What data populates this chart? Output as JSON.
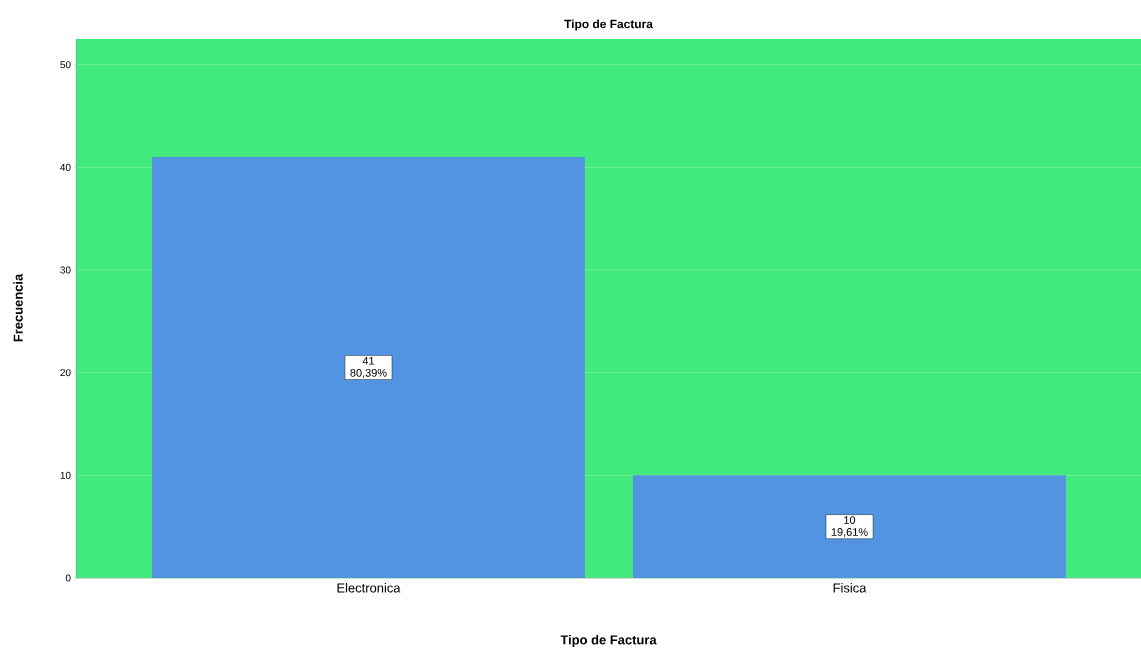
{
  "chart_data": {
    "type": "bar",
    "title": "Tipo de Factura",
    "xlabel": "Tipo de Factura",
    "ylabel": "Frecuencia",
    "categories": [
      "Electronica",
      "Fisica"
    ],
    "values": [
      41,
      10
    ],
    "value_labels": [
      "41 80,39%",
      "10 19,61%"
    ],
    "color": "#5294e2",
    "ylim": [
      0,
      52.5
    ],
    "yticks": [
      0,
      10,
      20,
      30,
      40,
      50
    ],
    "grid": "y"
  }
}
